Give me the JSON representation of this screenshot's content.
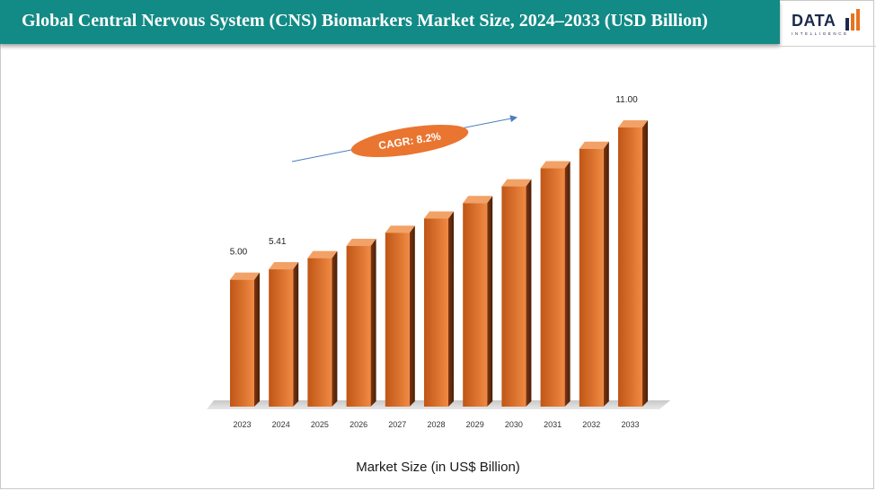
{
  "header": {
    "title": "Global Central Nervous System (CNS) Biomarkers Market Size, 2024–2033 (USD Billion)"
  },
  "logo": {
    "name": "DATA",
    "tagline": "INTELLIGENCE"
  },
  "chart_data": {
    "type": "bar",
    "style": "3d",
    "categories": [
      "2023",
      "2024",
      "2025",
      "2026",
      "2027",
      "2028",
      "2029",
      "2030",
      "2031",
      "2032",
      "2033"
    ],
    "values": [
      5.0,
      5.41,
      5.85,
      6.33,
      6.85,
      7.41,
      8.02,
      8.68,
      9.39,
      10.16,
      11.0
    ],
    "data_labels": [
      "5.00",
      "5.41",
      "",
      "",
      "",
      "",
      "",
      "",
      "",
      "",
      "11.00"
    ],
    "annotation": "CAGR: 8.2%",
    "xlabel": "Market Size (in US$ Billion)",
    "ylabel": "",
    "ylim": [
      0,
      11.0
    ],
    "grid": false,
    "legend": "none",
    "colors": {
      "bar_front_start": "#c05616",
      "bar_front_end": "#f08a43",
      "bar_side_start": "#7e3610",
      "bar_side_end": "#4a1f08",
      "bar_top": "#f2a266",
      "floor": "#d9d9d9",
      "annotation_fill": "#ea7530",
      "arrow": "#4a7ec2",
      "header": "#128a86"
    }
  }
}
